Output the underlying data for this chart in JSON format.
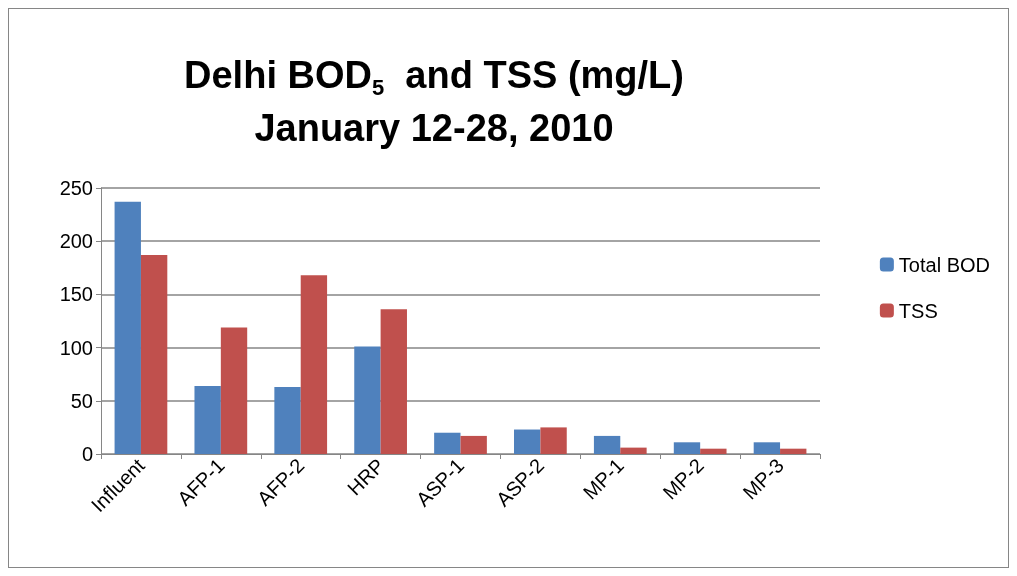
{
  "chart_data": {
    "type": "bar",
    "title": "Delhi BOD$_{5}$  and TSS (mg/L)",
    "subtitle": "January 12-28, 2010",
    "categories": [
      "Influent",
      "AFP-1",
      "AFP-2",
      "HRP",
      "ASP-1",
      "ASP-2",
      "MP-1",
      "MP-2",
      "MP-3"
    ],
    "series": [
      {
        "name": "Total BOD",
        "color": "#4f81bd",
        "values": [
          237,
          64,
          63,
          101,
          20,
          23,
          17,
          11,
          11
        ]
      },
      {
        "name": "TSS",
        "color": "#c0504d",
        "values": [
          187,
          119,
          168,
          136,
          17,
          25,
          6,
          5,
          5
        ]
      }
    ],
    "ylim": [
      0,
      250
    ],
    "yticks": [
      0,
      50,
      100,
      150,
      200,
      250
    ],
    "grid": "y",
    "legend": "right"
  }
}
